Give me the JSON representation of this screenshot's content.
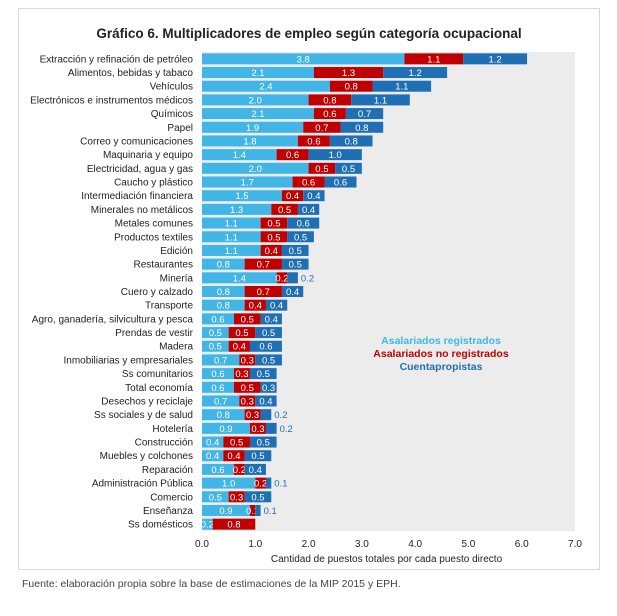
{
  "title": "Gráfico 6. Multiplicadores de empleo según categoría ocupacional",
  "source": "Fuente: elaboración propia sobre la base de estimaciones de la MIP 2015 y EPH.",
  "colors": {
    "registrados": "#41b6e6",
    "no_registrados": "#c00000",
    "cuentapropistas": "#1f6fb5",
    "plot_bg": "#ececec"
  },
  "chart_data": {
    "type": "bar",
    "orientation": "horizontal",
    "stacked": true,
    "xlabel": "Cantidad de puestos totales por cada puesto directo",
    "xlim": [
      0,
      7
    ],
    "xticks": [
      "0.0",
      "1.0",
      "2.0",
      "3.0",
      "4.0",
      "5.0",
      "6.0",
      "7.0"
    ],
    "legend_position": "right",
    "categories": [
      "Extracción y refinación de petróleo",
      "Alimentos, bebidas y tabaco",
      "Vehículos",
      "Electrónicos e instrumentos médicos",
      "Químicos",
      "Papel",
      "Correo y comunicaciones",
      "Maquinaria y equipo",
      "Electricidad, agua y gas",
      "Caucho y plástico",
      "Intermediación financiera",
      "Minerales no metálicos",
      "Metales comunes",
      "Productos textiles",
      "Edición",
      "Restaurantes",
      "Minería",
      "Cuero y calzado",
      "Transporte",
      "Agro, ganadería, silvicultura y pesca",
      "Prendas de vestir",
      "Madera",
      "Inmobiliarias y empresariales",
      "Ss comunitarios",
      "Total economía",
      "Desechos y reciclaje",
      "Ss sociales y de salud",
      "Hotelería",
      "Construcción",
      "Muebles y colchones",
      "Reparación",
      "Administración Pública",
      "Comercio",
      "Enseñanza",
      "Ss domésticos"
    ],
    "series": [
      {
        "name": "Asalariados registrados",
        "color_key": "registrados",
        "values": [
          3.8,
          2.1,
          2.4,
          2.0,
          2.1,
          1.9,
          1.8,
          1.4,
          2.0,
          1.7,
          1.5,
          1.3,
          1.1,
          1.1,
          1.1,
          0.8,
          1.4,
          0.8,
          0.8,
          0.6,
          0.5,
          0.5,
          0.7,
          0.6,
          0.6,
          0.7,
          0.8,
          0.9,
          0.4,
          0.4,
          0.6,
          1.0,
          0.5,
          0.9,
          0.2
        ]
      },
      {
        "name": "Asalariados no registrados",
        "color_key": "no_registrados",
        "values": [
          1.1,
          1.3,
          0.8,
          0.8,
          0.6,
          0.7,
          0.6,
          0.6,
          0.5,
          0.6,
          0.4,
          0.5,
          0.5,
          0.5,
          0.4,
          0.7,
          0.2,
          0.7,
          0.4,
          0.5,
          0.5,
          0.4,
          0.3,
          0.3,
          0.5,
          0.3,
          0.3,
          0.3,
          0.5,
          0.4,
          0.2,
          0.2,
          0.3,
          0.1,
          0.8
        ]
      },
      {
        "name": "Cuentapropistas",
        "color_key": "cuentapropistas",
        "values": [
          1.2,
          1.2,
          1.1,
          1.1,
          0.7,
          0.8,
          0.8,
          1.0,
          0.5,
          0.6,
          0.4,
          0.4,
          0.6,
          0.5,
          0.5,
          0.5,
          0.2,
          0.4,
          0.4,
          0.4,
          0.5,
          0.6,
          0.5,
          0.5,
          0.3,
          0.4,
          0.2,
          0.2,
          0.5,
          0.5,
          0.4,
          0.1,
          0.5,
          0.1,
          null
        ]
      }
    ]
  }
}
